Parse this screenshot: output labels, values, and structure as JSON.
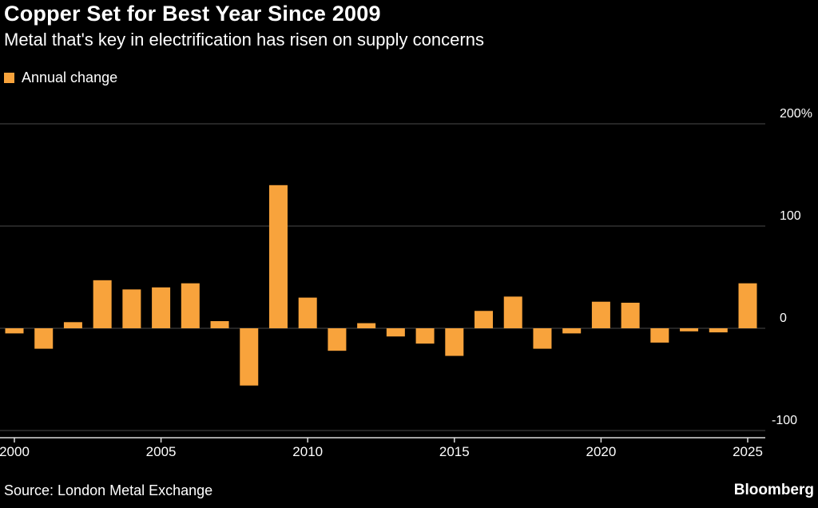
{
  "header": {
    "title": "Copper Set for Best Year Since 2009",
    "subtitle": "Metal that's key in electrification has risen on supply concerns"
  },
  "legend": {
    "label": "Annual change",
    "swatch_color": "#F8A33C"
  },
  "footer": {
    "source": "Source: London Metal Exchange",
    "brand": "Bloomberg"
  },
  "chart_data": {
    "type": "bar",
    "title": "Copper Set for Best Year Since 2009",
    "subtitle": "Metal that's key in electrification has risen on supply concerns",
    "series_name": "Annual change",
    "unit": "%",
    "bar_color": "#F8A33C",
    "background_color": "#000000",
    "grid": "horizontal",
    "legend_position": "top-left",
    "categories": [
      2000,
      2001,
      2002,
      2003,
      2004,
      2005,
      2006,
      2007,
      2008,
      2009,
      2010,
      2011,
      2012,
      2013,
      2014,
      2015,
      2016,
      2017,
      2018,
      2019,
      2020,
      2021,
      2022,
      2023,
      2024,
      2025
    ],
    "values": [
      -5,
      -20,
      6,
      47,
      38,
      40,
      44,
      7,
      -56,
      140,
      30,
      -22,
      5,
      -8,
      -15,
      -27,
      17,
      31,
      -20,
      -5,
      26,
      25,
      -14,
      -3,
      -4,
      44
    ],
    "y_ticks": [
      {
        "value": 200,
        "label": "200%"
      },
      {
        "value": 100,
        "label": "100"
      },
      {
        "value": 0,
        "label": "0"
      },
      {
        "value": -100,
        "label": "-100"
      }
    ],
    "x_ticks": [
      2000,
      2005,
      2010,
      2015,
      2020,
      2025
    ],
    "ylim": [
      -106,
      212
    ],
    "xlabel": "",
    "ylabel": "Annual change (%)"
  }
}
